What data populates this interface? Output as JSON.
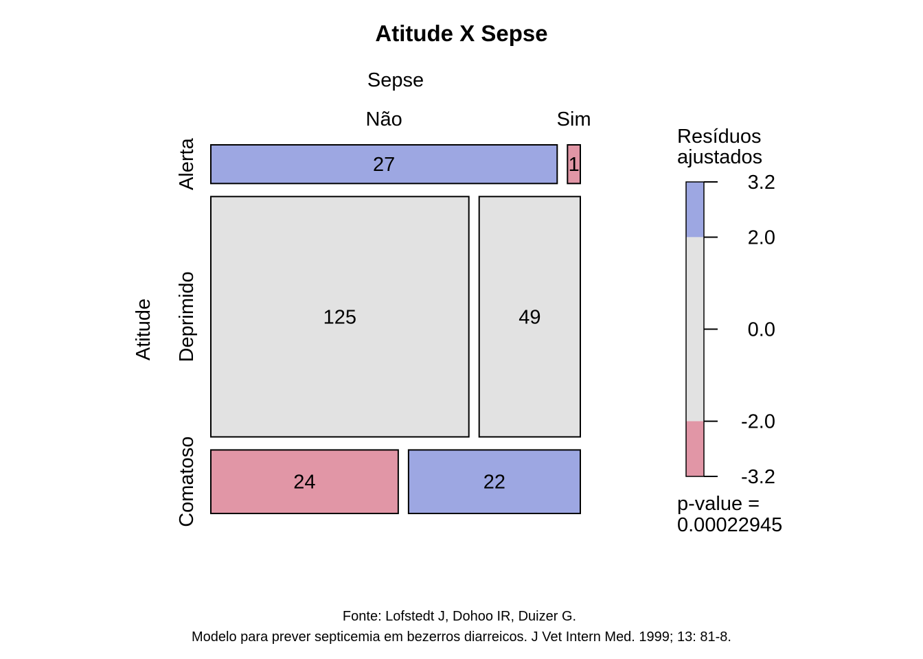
{
  "chart_data": {
    "type": "mosaic",
    "title": "Atitude X Sepse",
    "column_variable": "Sepse",
    "row_variable": "Atitude",
    "columns": [
      "Não",
      "Sim"
    ],
    "rows": [
      "Alerta",
      "Deprimido",
      "Comatoso"
    ],
    "counts": [
      [
        27,
        1
      ],
      [
        125,
        49
      ],
      [
        24,
        22
      ]
    ],
    "residual_class": [
      [
        "positive",
        "negative"
      ],
      [
        "neutral",
        "neutral"
      ],
      [
        "negative",
        "positive"
      ]
    ],
    "legend": {
      "title_line1": "Resíduos",
      "title_line2": "ajustados",
      "max": 3.2,
      "min": -3.2,
      "ticks": [
        "3.2",
        "2.0",
        "0.0",
        "-2.0",
        "-3.2"
      ],
      "tick_values": [
        3.2,
        2.0,
        0.0,
        -2.0,
        -3.2
      ],
      "thresholds": [
        2.0,
        -2.0
      ],
      "pvalue_label": "p-value =",
      "pvalue": "0.00022945"
    },
    "colors": {
      "positive": "#9DA7E2",
      "neutral": "#E2E2E2",
      "negative": "#E196A6"
    }
  },
  "footer": {
    "line1": "Fonte: Lofstedt J, Dohoo IR, Duizer G.",
    "line2": "Modelo para prever septicemia em bezerros diarreicos. J Vet Intern Med. 1999; 13: 81-8."
  }
}
